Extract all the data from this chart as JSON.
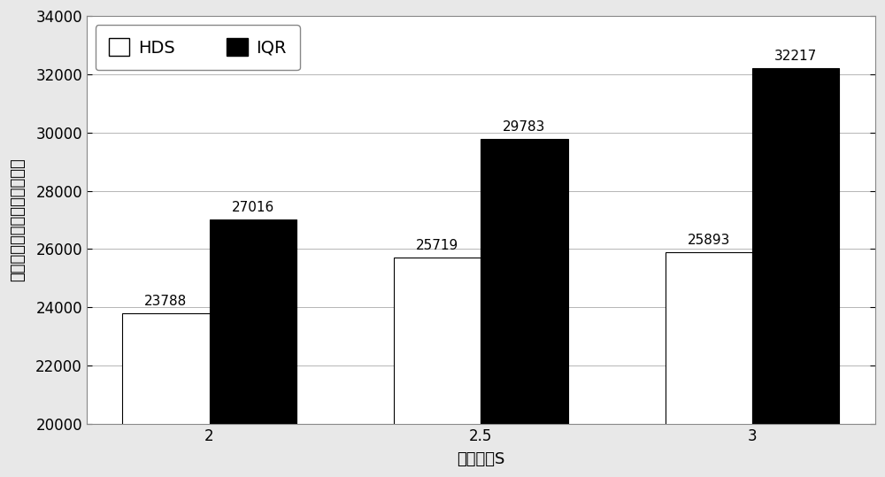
{
  "categories": [
    "2",
    "2.5",
    "3"
  ],
  "hds_values": [
    23788,
    25719,
    25893
  ],
  "iqr_values": [
    27016,
    29783,
    32217
  ],
  "hds_color": "#ffffff",
  "iqr_color": "#000000",
  "bar_edge_color": "#000000",
  "ylabel": "虚拟机迁移数量（单位：个）",
  "xlabel": "安全系数S",
  "ylim_min": 20000,
  "ylim_max": 34000,
  "yticks": [
    20000,
    22000,
    24000,
    26000,
    28000,
    30000,
    32000,
    34000
  ],
  "legend_labels": [
    "HDS",
    "IQR"
  ],
  "bar_width": 0.32,
  "background_color": "#e8e8e8",
  "plot_bg_color": "#ffffff",
  "grid_color": "#aaaaaa",
  "font_size_labels": 13,
  "font_size_ticks": 12,
  "font_size_legend": 14,
  "font_size_annotation": 11
}
